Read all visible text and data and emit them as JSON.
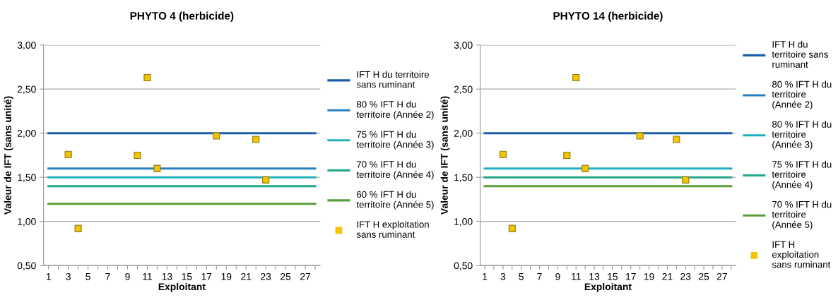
{
  "chart_data": [
    {
      "type": "scatter",
      "title": "PHYTO 4 (herbicide)",
      "xlabel": "Exploitant",
      "ylabel": "Valeur de IFT (sans unité)",
      "xlim": [
        0.5,
        28.5
      ],
      "xticks": [
        1,
        {
          "value": 2,
          "label": null
        },
        3,
        {
          "value": 4,
          "label": null
        },
        5,
        {
          "value": 6,
          "label": null
        },
        7,
        {
          "value": 8,
          "label": null
        },
        9,
        {
          "value": 10,
          "label": null
        },
        11,
        {
          "value": 12,
          "label": null
        },
        13,
        {
          "value": 14,
          "label": null
        },
        15,
        {
          "value": 16,
          "label": null
        },
        17,
        {
          "value": 18,
          "label": null
        },
        19,
        {
          "value": 20,
          "label": null
        },
        21,
        {
          "value": 22,
          "label": null
        },
        23,
        {
          "value": 24,
          "label": null
        },
        25,
        {
          "value": 26,
          "label": null
        },
        27,
        {
          "value": 28,
          "label": null
        }
      ],
      "ylim": [
        0.5,
        3.0
      ],
      "yticks": [
        {
          "value": 0.5,
          "label": "0,50"
        },
        {
          "value": 1.0,
          "label": "1,00"
        },
        {
          "value": 1.5,
          "label": "1,50"
        },
        {
          "value": 2.0,
          "label": "2,00"
        },
        {
          "value": 2.5,
          "label": "2,50"
        },
        {
          "value": 3.0,
          "label": "3,00"
        }
      ],
      "grid": "y",
      "legend": "right",
      "series": [
        {
          "type": "line",
          "name": "IFT H du territoire sans ruminant",
          "color": "#1b5ea8",
          "x": [
            1,
            28
          ],
          "values": [
            2.0,
            2.0
          ]
        },
        {
          "type": "line",
          "name": "80 % IFT H du territoire (Année 2)",
          "color": "#2a7fbf",
          "x": [
            1,
            28
          ],
          "values": [
            1.6,
            1.6
          ]
        },
        {
          "type": "line",
          "name": "75 % IFT H du territoire (Année 3)",
          "color": "#21b0c0",
          "x": [
            1,
            28
          ],
          "values": [
            1.5,
            1.5
          ]
        },
        {
          "type": "line",
          "name": "70 % IFT H du territoire (Année 4)",
          "color": "#1fa88a",
          "x": [
            1,
            28
          ],
          "values": [
            1.4,
            1.4
          ]
        },
        {
          "type": "line",
          "name": "60 % IFT H du territoire (Année 5)",
          "color": "#5a9e3a",
          "x": [
            1,
            28
          ],
          "values": [
            1.2,
            1.2
          ]
        },
        {
          "name": "IFT H exploitation sans ruminant",
          "color": "#f2c500",
          "marker": "square",
          "x": [
            3,
            4,
            10,
            11,
            12,
            18,
            22,
            23
          ],
          "values": [
            1.76,
            0.92,
            1.75,
            2.63,
            1.6,
            1.97,
            1.93,
            1.47
          ]
        }
      ]
    },
    {
      "type": "scatter",
      "title": "PHYTO 14 (herbicide)",
      "xlabel": "Exploitant",
      "ylabel": "Valeur de IFT (sans unité)",
      "xlim": [
        0.5,
        28.5
      ],
      "xticks": [
        1,
        {
          "value": 2,
          "label": null
        },
        3,
        {
          "value": 4,
          "label": null
        },
        5,
        {
          "value": 6,
          "label": null
        },
        7,
        {
          "value": 8,
          "label": null
        },
        9,
        {
          "value": 10,
          "label": null
        },
        11,
        {
          "value": 12,
          "label": null
        },
        13,
        {
          "value": 14,
          "label": null
        },
        15,
        {
          "value": 16,
          "label": null
        },
        17,
        {
          "value": 18,
          "label": null
        },
        19,
        {
          "value": 20,
          "label": null
        },
        21,
        {
          "value": 22,
          "label": null
        },
        23,
        {
          "value": 24,
          "label": null
        },
        25,
        {
          "value": 26,
          "label": null
        },
        27,
        {
          "value": 28,
          "label": null
        }
      ],
      "ylim": [
        0.5,
        3.0
      ],
      "yticks": [
        {
          "value": 0.5,
          "label": "0,50"
        },
        {
          "value": 1.0,
          "label": "1,00"
        },
        {
          "value": 1.5,
          "label": "1,50"
        },
        {
          "value": 2.0,
          "label": "2,00"
        },
        {
          "value": 2.5,
          "label": "2,50"
        },
        {
          "value": 3.0,
          "label": "3,00"
        }
      ],
      "grid": "y",
      "legend": "right",
      "series": [
        {
          "type": "line",
          "name": "IFT H du territoire sans ruminant",
          "color": "#1b5ea8",
          "x": [
            1,
            28
          ],
          "values": [
            2.0,
            2.0
          ]
        },
        {
          "type": "line",
          "name": "80 % IFT H du territoire (Année 2)",
          "color": "#2a7fbf"
        },
        {
          "type": "line",
          "name": "80 % IFT H du territoire (Année 3)",
          "color": "#21b0c0",
          "x": [
            1,
            28
          ],
          "values": [
            1.6,
            1.6
          ]
        },
        {
          "type": "line",
          "name": "75 % IFT H du territoire (Année 4)",
          "color": "#1fa88a",
          "x": [
            1,
            28
          ],
          "values": [
            1.5,
            1.5
          ]
        },
        {
          "type": "line",
          "name": "70 % IFT H du territoire (Année 5)",
          "color": "#5a9e3a",
          "x": [
            1,
            28
          ],
          "values": [
            1.4,
            1.4
          ]
        },
        {
          "name": "IFT H exploitation sans ruminant",
          "color": "#f2c500",
          "marker": "square",
          "x": [
            3,
            4,
            10,
            11,
            12,
            18,
            22,
            23
          ],
          "values": [
            1.76,
            0.92,
            1.75,
            2.63,
            1.6,
            1.97,
            1.93,
            1.47
          ]
        }
      ]
    }
  ]
}
